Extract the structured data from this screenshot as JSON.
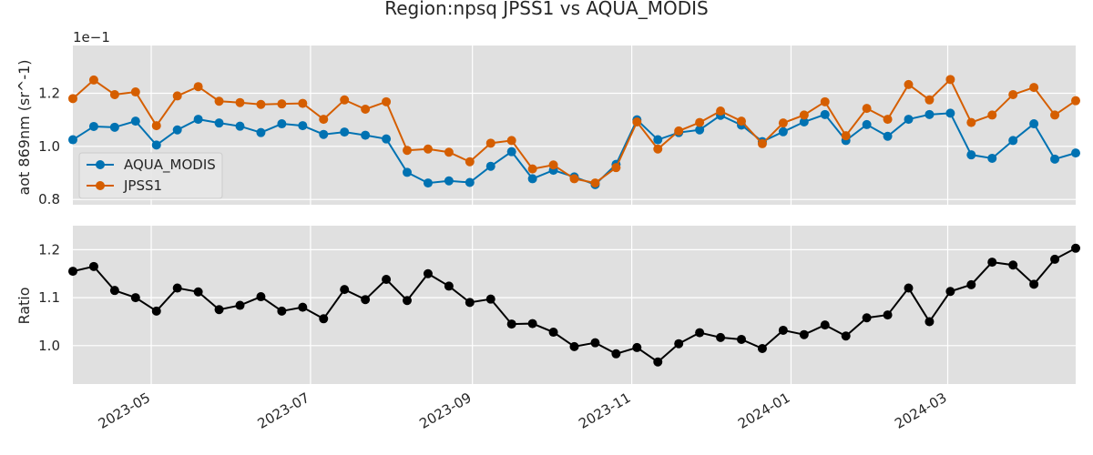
{
  "chart_data": {
    "title": "Region:npsq JPSS1 vs AQUA_MODIS",
    "type": "line",
    "x": [
      "2023-04-01",
      "2023-04-09",
      "2023-04-17",
      "2023-04-25",
      "2023-05-03",
      "2023-05-11",
      "2023-05-19",
      "2023-05-27",
      "2023-06-04",
      "2023-06-12",
      "2023-06-20",
      "2023-06-28",
      "2023-07-06",
      "2023-07-14",
      "2023-07-22",
      "2023-07-30",
      "2023-08-07",
      "2023-08-15",
      "2023-08-23",
      "2023-08-31",
      "2023-09-08",
      "2023-09-16",
      "2023-09-24",
      "2023-10-02",
      "2023-10-10",
      "2023-10-18",
      "2023-10-26",
      "2023-11-03",
      "2023-11-11",
      "2023-11-19",
      "2023-11-27",
      "2023-12-05",
      "2023-12-13",
      "2023-12-21",
      "2023-12-29",
      "2024-01-06",
      "2024-01-14",
      "2024-01-22",
      "2024-01-30",
      "2024-02-07",
      "2024-02-15",
      "2024-02-23",
      "2024-03-02",
      "2024-03-10",
      "2024-03-18",
      "2024-03-26",
      "2024-04-03",
      "2024-04-11",
      "2024-04-19"
    ],
    "x_ticks": [
      "2023-05",
      "2023-07",
      "2023-09",
      "2023-11",
      "2024-01",
      "2024-03"
    ],
    "top_panel": {
      "ylabel": "aot 869nm (sr^-1)",
      "scale_note": "1e−1",
      "ylim": [
        0.78,
        1.38
      ],
      "yticks": [
        "0.8",
        "1.0",
        "1.2"
      ],
      "legend_position": "center-left",
      "series": [
        {
          "name": "AQUA_MODIS",
          "color": "#0072b2",
          "values": [
            1.025,
            1.075,
            1.072,
            1.095,
            1.005,
            1.062,
            1.102,
            1.088,
            1.076,
            1.052,
            1.085,
            1.078,
            1.045,
            1.054,
            1.042,
            1.028,
            0.902,
            0.862,
            0.87,
            0.864,
            0.925,
            0.98,
            0.878,
            0.91,
            0.885,
            0.856,
            0.932,
            1.1,
            1.025,
            1.052,
            1.062,
            1.117,
            1.08,
            1.018,
            1.055,
            1.092,
            1.12,
            1.022,
            1.082,
            1.038,
            1.102,
            1.12,
            1.125,
            0.968,
            0.955,
            1.022,
            1.085,
            0.952,
            0.975
          ]
        },
        {
          "name": "JPSS1",
          "color": "#d55e00",
          "values": [
            1.18,
            1.25,
            1.195,
            1.205,
            1.078,
            1.19,
            1.225,
            1.17,
            1.165,
            1.158,
            1.16,
            1.162,
            1.102,
            1.175,
            1.14,
            1.168,
            0.985,
            0.99,
            0.978,
            0.942,
            1.012,
            1.022,
            0.915,
            0.93,
            0.878,
            0.862,
            0.92,
            1.092,
            0.99,
            1.058,
            1.09,
            1.133,
            1.095,
            1.01,
            1.088,
            1.118,
            1.168,
            1.04,
            1.143,
            1.102,
            1.233,
            1.175,
            1.252,
            1.09,
            1.118,
            1.195,
            1.222,
            1.118,
            1.172
          ]
        }
      ]
    },
    "bottom_panel": {
      "ylabel": "Ratio",
      "ylim": [
        0.92,
        1.25
      ],
      "yticks": [
        "1.0",
        "1.1",
        "1.2"
      ],
      "series": [
        {
          "name": "",
          "color": "#000000",
          "values": [
            1.155,
            1.165,
            1.115,
            1.1,
            1.072,
            1.12,
            1.112,
            1.075,
            1.084,
            1.102,
            1.072,
            1.08,
            1.056,
            1.117,
            1.096,
            1.138,
            1.094,
            1.15,
            1.124,
            1.09,
            1.097,
            1.045,
            1.046,
            1.028,
            0.998,
            1.006,
            0.983,
            0.996,
            0.966,
            1.004,
            1.027,
            1.017,
            1.013,
            0.994,
            1.032,
            1.023,
            1.043,
            1.02,
            1.058,
            1.064,
            1.12,
            1.05,
            1.113,
            1.127,
            1.174,
            1.168,
            1.128,
            1.18,
            1.203
          ]
        }
      ]
    },
    "grid": true
  }
}
